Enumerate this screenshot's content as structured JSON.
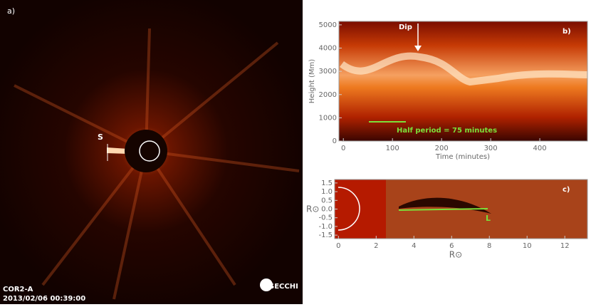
{
  "panels": {
    "a": {
      "label": "a)",
      "marker": "S",
      "instrument": "COR2-A",
      "timestamp": "2013/02/06 00:39:00",
      "logo": "SECCHI"
    },
    "b": {
      "label": "b)",
      "ylabel": "Height (Mm)",
      "xlabel": "Time (minutes)",
      "xlim": [
        -9,
        497
      ],
      "ylim": [
        0,
        5150
      ],
      "xticks": [
        0,
        100,
        200,
        300,
        400
      ],
      "yticks": [
        0,
        1000,
        2000,
        3000,
        4000,
        5000
      ],
      "dip": "Dip",
      "period": "Half period = 75 minutes"
    },
    "c": {
      "label": "c)",
      "xlabel": "R⊙",
      "ylabel": "R⊙",
      "marker": "L",
      "xlim": [
        -0.2,
        13.2
      ],
      "ylim": [
        -1.7,
        1.7
      ],
      "xticks": [
        0,
        2,
        4,
        6,
        8,
        10,
        12
      ],
      "yticks": [
        {
          "value": 1.5,
          "label": "1.5"
        },
        {
          "value": 1.0,
          "label": "1.0"
        },
        {
          "value": 0.5,
          "label": "0.5"
        },
        {
          "value": 0.0,
          "label": "0.0"
        },
        {
          "value": -0.5,
          "label": "-0.5"
        },
        {
          "value": -1.0,
          "label": "-1.0"
        },
        {
          "value": -1.5,
          "label": "-1.5"
        }
      ]
    }
  }
}
